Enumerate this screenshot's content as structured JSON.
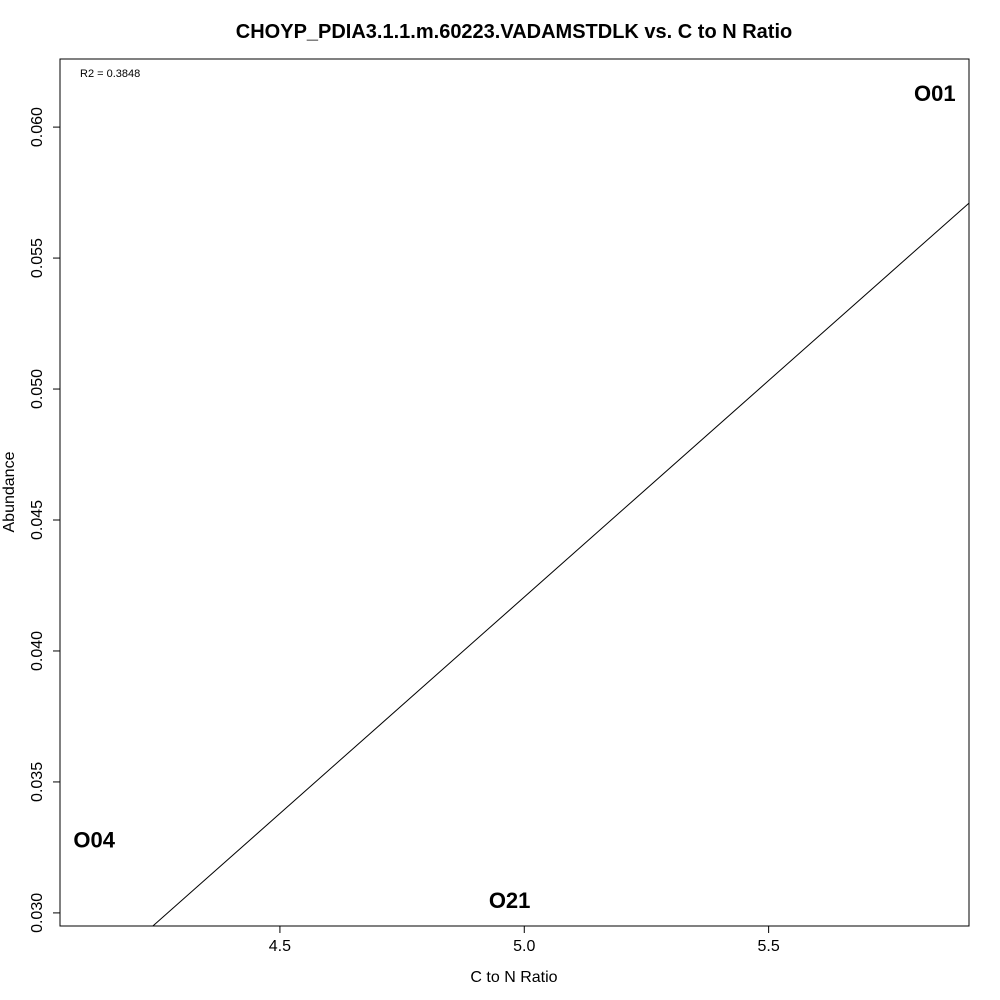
{
  "chart_data": {
    "type": "scatter",
    "title": "CHOYP_PDIA3.1.1.m.60223.VADAMSTDLK vs. C to N Ratio",
    "xlabel": "C to N Ratio",
    "ylabel": "Abundance",
    "xlim": [
      4.05,
      5.91
    ],
    "ylim": [
      0.0295,
      0.0626
    ],
    "x_ticks": [
      4.5,
      5.0,
      5.5
    ],
    "x_tick_labels": [
      "4.5",
      "5.0",
      "5.5"
    ],
    "y_ticks": [
      0.03,
      0.035,
      0.04,
      0.045,
      0.05,
      0.055,
      0.06
    ],
    "y_tick_labels": [
      "0.030",
      "0.035",
      "0.040",
      "0.045",
      "0.050",
      "0.055",
      "0.060"
    ],
    "points": [
      {
        "label": "O01",
        "x": 5.84,
        "y": 0.0613
      },
      {
        "label": "O04",
        "x": 4.12,
        "y": 0.0328
      },
      {
        "label": "O21",
        "x": 4.97,
        "y": 0.0305
      }
    ],
    "fit_line": {
      "x": [
        4.24,
        5.91
      ],
      "y": [
        0.0295,
        0.0571
      ]
    },
    "annotation": "R2 = 0.3848",
    "grid": false,
    "legend": "none"
  }
}
